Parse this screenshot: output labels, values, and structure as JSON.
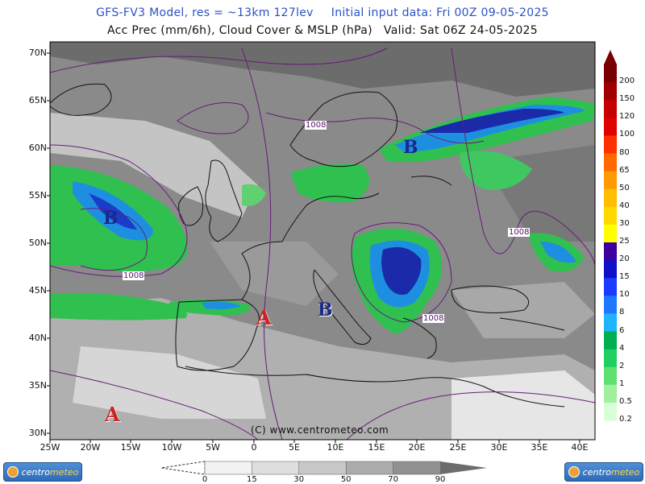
{
  "header": {
    "model": "GFS-FV3 Model, res = ~13km 127lev",
    "initial": "Initial input data: Fri 00Z 09-05-2025",
    "product": "Acc Prec (mm/6h), Cloud Cover & MSLP (hPa)",
    "valid": "Valid: Sat 06Z 24-05-2025"
  },
  "latitude_labels": [
    "70N",
    "65N",
    "60N",
    "55N",
    "50N",
    "45N",
    "40N",
    "35N",
    "30N"
  ],
  "longitude_labels": [
    "25W",
    "20W",
    "15W",
    "10W",
    "5W",
    "0",
    "5E",
    "10E",
    "15E",
    "20E",
    "25E",
    "30E",
    "35E",
    "40E"
  ],
  "pressure_centers": [
    {
      "label": "A",
      "color": "#cc2222"
    },
    {
      "label": "A",
      "color": "#cc2222"
    },
    {
      "label": "B",
      "color": "#1a2a8a"
    },
    {
      "label": "B",
      "color": "#1a2a8a"
    },
    {
      "label": "B",
      "color": "#1a2a8a"
    }
  ],
  "isobar_labels": [
    "1008",
    "1008",
    "1008",
    "1008"
  ],
  "precip_scale": {
    "labels": [
      "200",
      "150",
      "120",
      "100",
      "80",
      "65",
      "50",
      "40",
      "30",
      "25",
      "20",
      "15",
      "10",
      "8",
      "6",
      "4",
      "2",
      "1",
      "0.5",
      "0.2"
    ],
    "colors": [
      "#7a0000",
      "#a00000",
      "#c40000",
      "#e00000",
      "#ff3000",
      "#ff6a00",
      "#ff9a00",
      "#ffbf00",
      "#ffd800",
      "#ffff00",
      "#3c00a0",
      "#1010c8",
      "#1a3cff",
      "#1e78ff",
      "#20b4ff",
      "#00b050",
      "#20d060",
      "#60e070",
      "#a0f0a0",
      "#d8ffd8"
    ]
  },
  "cloud_scale": {
    "labels": [
      "0",
      "15",
      "30",
      "50",
      "70",
      "90"
    ],
    "colors": [
      "#f2f2f2",
      "#dedede",
      "#c8c8c8",
      "#acacac",
      "#909090",
      "#6c6c6c"
    ]
  },
  "credit": "(C) www.centrometeo.com",
  "logo": {
    "prefix": "centro",
    "suffix": "meteo"
  }
}
